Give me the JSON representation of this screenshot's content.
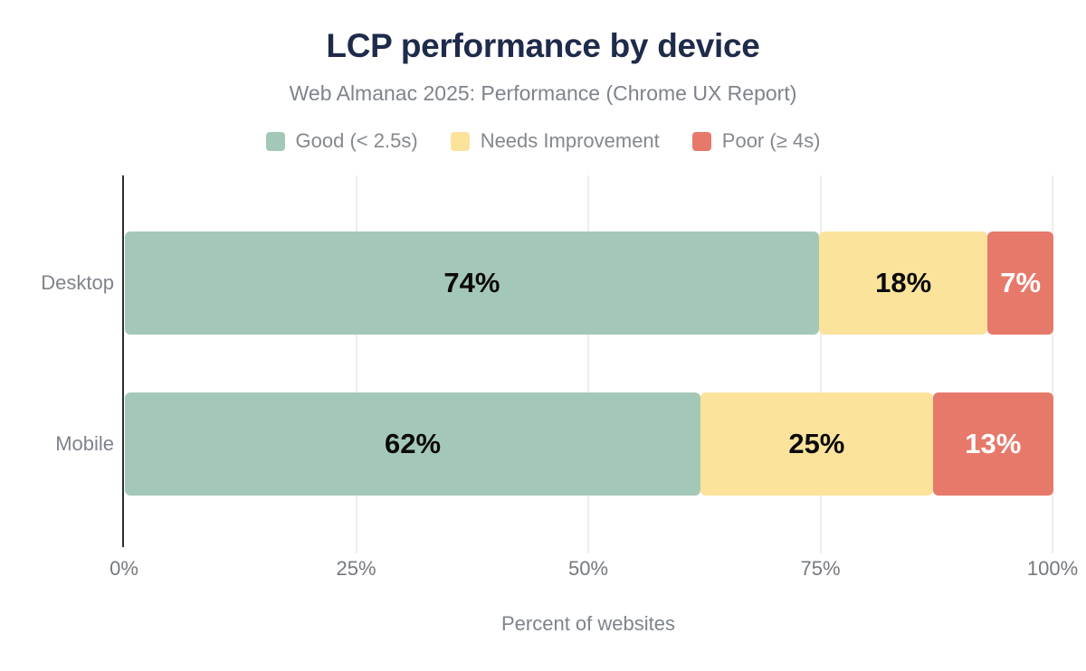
{
  "header": {
    "title": "LCP performance by device",
    "subtitle": "Web Almanac 2025: Performance (Chrome UX Report)"
  },
  "colors": {
    "title_text": "#1e2b4a",
    "muted_text": "#7e848c",
    "legend_text": "#84888d",
    "tick_text": "#75797e",
    "axis_line": "#2e2e2e",
    "gridline": "#ededed",
    "good": "#a4c8b7",
    "needs_improvement": "#fce39c",
    "poor": "#e7796b",
    "value_label_dark": "#0a0a0a",
    "value_label_light": "#ffffff"
  },
  "legend": {
    "items": [
      {
        "label": "Good (< 2.5s)",
        "color": "#a4c8b7"
      },
      {
        "label": "Needs Improvement",
        "color": "#fce39c"
      },
      {
        "label": "Poor (≥ 4s)",
        "color": "#e7796b"
      }
    ]
  },
  "chart_data": {
    "type": "bar",
    "orientation": "horizontal",
    "stacked": true,
    "title": "LCP performance by device",
    "subtitle": "Web Almanac 2025: Performance (Chrome UX Report)",
    "xlabel": "Percent of websites",
    "ylabel": "",
    "categories": [
      "Desktop",
      "Mobile"
    ],
    "series": [
      {
        "name": "Good (< 2.5s)",
        "color": "#a4c8b7",
        "text_color": "#0a0a0a",
        "values": [
          74,
          62
        ]
      },
      {
        "name": "Needs Improvement",
        "color": "#fce39c",
        "text_color": "#0a0a0a",
        "values": [
          18,
          25
        ]
      },
      {
        "name": "Poor (≥ 4s)",
        "color": "#e7796b",
        "text_color": "#ffffff",
        "values": [
          7,
          13
        ]
      }
    ],
    "bar_labels": [
      [
        "74%",
        "18%",
        "7%"
      ],
      [
        "62%",
        "25%",
        "13%"
      ]
    ],
    "xlim": [
      0,
      100
    ],
    "x_ticks": [
      {
        "value": 0,
        "label": "0%"
      },
      {
        "value": 25,
        "label": "25%"
      },
      {
        "value": 50,
        "label": "50%"
      },
      {
        "value": 75,
        "label": "75%"
      },
      {
        "value": 100,
        "label": "100%"
      }
    ],
    "grid": "vertical",
    "legend_position": "top"
  }
}
